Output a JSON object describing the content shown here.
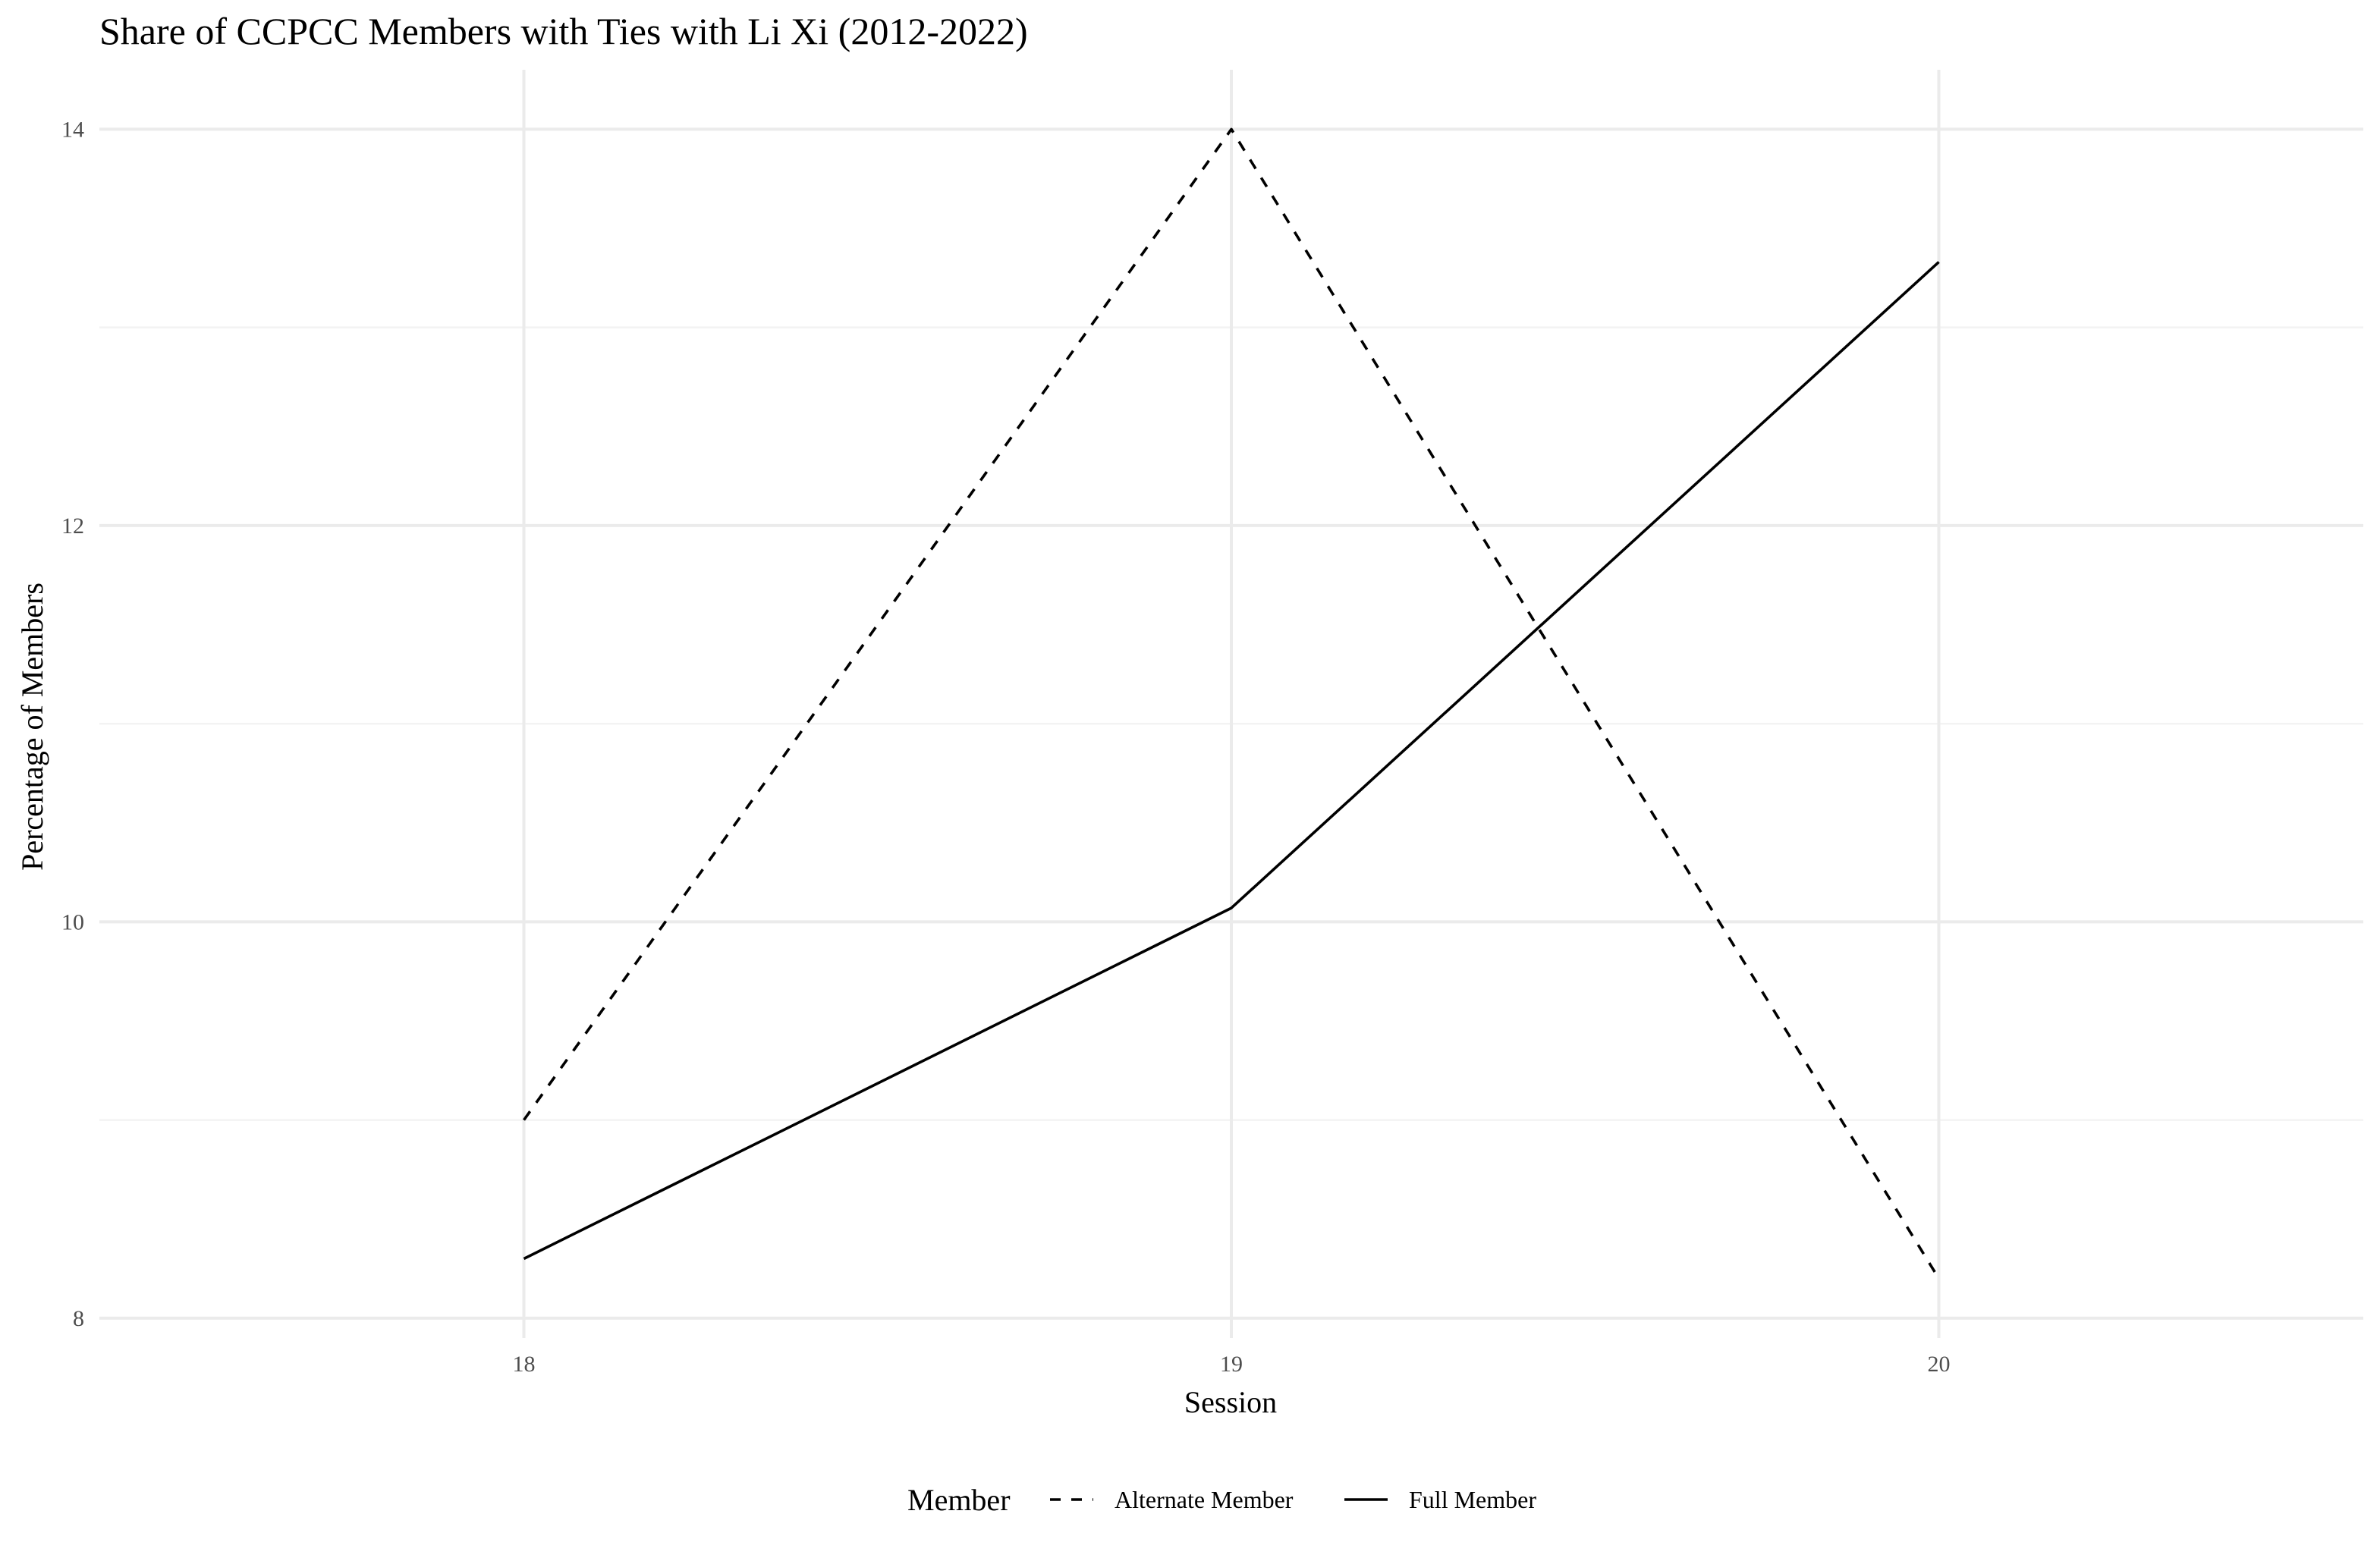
{
  "chart_data": {
    "type": "line",
    "title": "Share of CCPCC Members with Ties with Li Xi (2012-2022)",
    "xlabel": "Session",
    "ylabel": "Percentage of Members",
    "x": [
      18,
      19,
      20
    ],
    "x_ticks": [
      "18",
      "19",
      "20"
    ],
    "y_ticks": [
      "8",
      "10",
      "12",
      "14"
    ],
    "xlim": [
      17.4,
      20.6
    ],
    "ylim": [
      7.9,
      14.3
    ],
    "grid": true,
    "legend": {
      "title": "Member",
      "position": "bottom",
      "entries": [
        {
          "label": "Alternate Member",
          "linetype": "dashed"
        },
        {
          "label": "Full Member",
          "linetype": "solid"
        }
      ]
    },
    "series": [
      {
        "name": "Alternate Member",
        "linetype": "dashed",
        "values": [
          9.0,
          14.0,
          8.2
        ]
      },
      {
        "name": "Full Member",
        "linetype": "solid",
        "values": [
          8.3,
          10.07,
          13.33
        ]
      }
    ]
  }
}
